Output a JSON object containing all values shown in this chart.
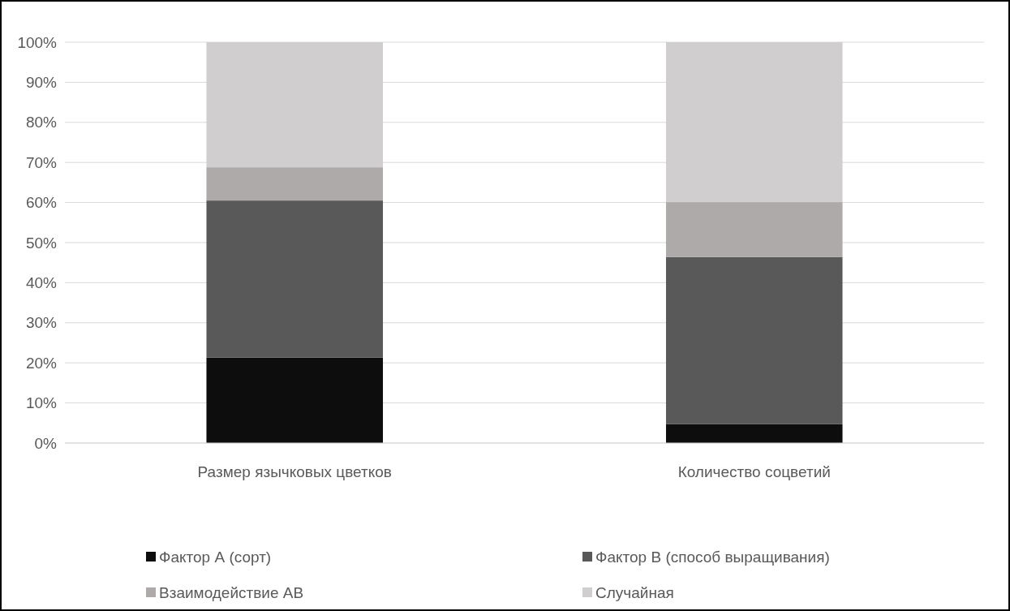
{
  "chart_data": {
    "type": "bar",
    "stacked": true,
    "categories": [
      "Размер язычковых цветков",
      "Количество соцветий"
    ],
    "series": [
      {
        "name": "Фактор А (сорт)",
        "color": "#0d0d0d",
        "values": [
          21.3,
          4.7
        ]
      },
      {
        "name": "Фактор В (способ выращивания)",
        "color": "#595959",
        "values": [
          39.2,
          41.7
        ]
      },
      {
        "name": "Взаимодействие АВ",
        "color": "#aeaaaa",
        "values": [
          8.3,
          13.7
        ]
      },
      {
        "name": "Случайная",
        "color": "#d0cece",
        "values": [
          31.2,
          39.9
        ]
      }
    ],
    "ylim": [
      0,
      100
    ],
    "yticks": [
      {
        "value": 0,
        "label": "0%"
      },
      {
        "value": 10,
        "label": "10%"
      },
      {
        "value": 20,
        "label": "20%"
      },
      {
        "value": 30,
        "label": "30%"
      },
      {
        "value": 40,
        "label": "40%"
      },
      {
        "value": 50,
        "label": "50%"
      },
      {
        "value": 60,
        "label": "60%"
      },
      {
        "value": 70,
        "label": "70%"
      },
      {
        "value": 80,
        "label": "80%"
      },
      {
        "value": 90,
        "label": "90%"
      },
      {
        "value": 100,
        "label": "100%"
      }
    ],
    "grid": "y",
    "legend": "bottom"
  }
}
